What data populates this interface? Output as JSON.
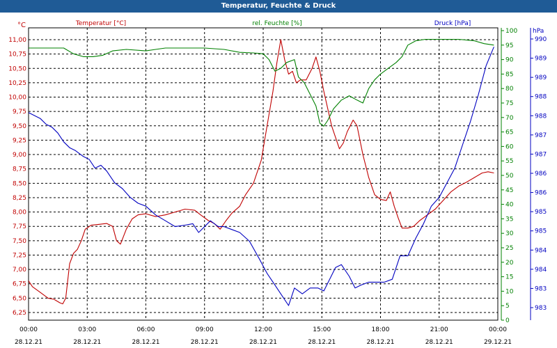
{
  "window": {
    "title": "Temperatur, Feuchte & Druck"
  },
  "colors": {
    "temperature": "#c00000",
    "humidity": "#008000",
    "pressure": "#0000c0",
    "titlebar": "#1f5b96"
  },
  "chart_data": {
    "type": "line",
    "grid": true,
    "x": [
      "00:00",
      "03:00",
      "06:00",
      "09:00",
      "12:00",
      "15:00",
      "18:00",
      "21:00",
      "00:00"
    ],
    "x_dates": [
      "28.12.21",
      "28.12.21",
      "28.12.21",
      "28.12.21",
      "28.12.21",
      "28.12.21",
      "28.12.21",
      "28.12.21",
      "29.12.21"
    ],
    "xlim": [
      0,
      24
    ],
    "axes": {
      "left": {
        "title": "Temperatur [°C]",
        "unit": "°C",
        "ylim": [
          6.25,
          11.0
        ],
        "ticks": [
          "11,00",
          "10,75",
          "10,50",
          "10,25",
          "10,00",
          "9,75",
          "9,50",
          "9,25",
          "9,00",
          "8,75",
          "8,50",
          "8,25",
          "8,00",
          "7,75",
          "7,50",
          "7,25",
          "7,00",
          "6,75",
          "6,50",
          "6,25"
        ]
      },
      "middle": {
        "title": "rel. Feuchte [%]",
        "unit": "%",
        "ylim": [
          0,
          100
        ],
        "ticks": [
          "100",
          "95",
          "90",
          "85",
          "80",
          "75",
          "70",
          "65",
          "60",
          "55",
          "50",
          "45",
          "40",
          "35",
          "30",
          "25",
          "20",
          "15",
          "10",
          "5",
          "0"
        ]
      },
      "right": {
        "title": "Druck [hPa]",
        "unit": "hPa",
        "ticks": [
          "990",
          "989",
          "989",
          "988",
          "988",
          "987",
          "987",
          "986",
          "986",
          "985",
          "985",
          "984",
          "984",
          "983",
          "983"
        ]
      }
    },
    "series": [
      {
        "name": "Temperatur [°C]",
        "axis": "left",
        "points": [
          [
            0,
            6.8
          ],
          [
            0.2,
            6.7
          ],
          [
            0.6,
            6.6
          ],
          [
            1.0,
            6.5
          ],
          [
            1.3,
            6.48
          ],
          [
            1.6,
            6.42
          ],
          [
            1.75,
            6.4
          ],
          [
            1.9,
            6.5
          ],
          [
            2.1,
            7.1
          ],
          [
            2.3,
            7.28
          ],
          [
            2.5,
            7.35
          ],
          [
            2.7,
            7.5
          ],
          [
            2.9,
            7.7
          ],
          [
            3.2,
            7.77
          ],
          [
            3.5,
            7.78
          ],
          [
            4.0,
            7.8
          ],
          [
            4.3,
            7.75
          ],
          [
            4.5,
            7.5
          ],
          [
            4.7,
            7.44
          ],
          [
            5.0,
            7.7
          ],
          [
            5.3,
            7.88
          ],
          [
            5.6,
            7.95
          ],
          [
            6.0,
            7.97
          ],
          [
            6.5,
            7.92
          ],
          [
            7.0,
            7.95
          ],
          [
            7.5,
            8.0
          ],
          [
            8.0,
            8.05
          ],
          [
            8.5,
            8.03
          ],
          [
            8.8,
            7.95
          ],
          [
            9.2,
            7.85
          ],
          [
            9.5,
            7.8
          ],
          [
            9.8,
            7.7
          ],
          [
            10.1,
            7.85
          ],
          [
            10.4,
            7.98
          ],
          [
            10.8,
            8.1
          ],
          [
            11.1,
            8.3
          ],
          [
            11.5,
            8.5
          ],
          [
            11.9,
            8.9
          ],
          [
            12.2,
            9.5
          ],
          [
            12.5,
            10.1
          ],
          [
            12.7,
            10.6
          ],
          [
            12.9,
            11.0
          ],
          [
            13.1,
            10.65
          ],
          [
            13.3,
            10.4
          ],
          [
            13.5,
            10.45
          ],
          [
            13.7,
            10.25
          ],
          [
            13.9,
            10.3
          ],
          [
            14.2,
            10.3
          ],
          [
            14.5,
            10.5
          ],
          [
            14.7,
            10.7
          ],
          [
            14.9,
            10.45
          ],
          [
            15.1,
            10.1
          ],
          [
            15.3,
            9.8
          ],
          [
            15.5,
            9.5
          ],
          [
            15.7,
            9.3
          ],
          [
            15.9,
            9.1
          ],
          [
            16.1,
            9.2
          ],
          [
            16.3,
            9.4
          ],
          [
            16.6,
            9.6
          ],
          [
            16.8,
            9.5
          ],
          [
            17.1,
            9.0
          ],
          [
            17.4,
            8.6
          ],
          [
            17.7,
            8.3
          ],
          [
            18.0,
            8.22
          ],
          [
            18.3,
            8.2
          ],
          [
            18.5,
            8.35
          ],
          [
            18.7,
            8.1
          ],
          [
            18.9,
            7.9
          ],
          [
            19.1,
            7.72
          ],
          [
            19.4,
            7.72
          ],
          [
            19.7,
            7.75
          ],
          [
            20.0,
            7.85
          ],
          [
            20.4,
            7.95
          ],
          [
            20.8,
            8.05
          ],
          [
            21.2,
            8.2
          ],
          [
            21.6,
            8.35
          ],
          [
            22.0,
            8.45
          ],
          [
            22.4,
            8.52
          ],
          [
            22.8,
            8.6
          ],
          [
            23.2,
            8.68
          ],
          [
            23.5,
            8.7
          ],
          [
            23.8,
            8.68
          ]
        ]
      },
      {
        "name": "rel. Feuchte [%]",
        "axis": "middle",
        "points": [
          [
            0,
            94
          ],
          [
            1.0,
            94
          ],
          [
            1.8,
            94
          ],
          [
            2.3,
            92
          ],
          [
            2.8,
            91
          ],
          [
            3.3,
            91
          ],
          [
            3.8,
            91.5
          ],
          [
            4.3,
            93
          ],
          [
            5.0,
            93.5
          ],
          [
            6.0,
            93
          ],
          [
            6.5,
            93.5
          ],
          [
            7.0,
            94
          ],
          [
            8.0,
            94
          ],
          [
            9.0,
            94
          ],
          [
            10.0,
            93.5
          ],
          [
            10.8,
            92.5
          ],
          [
            11.5,
            92.3
          ],
          [
            12.0,
            92
          ],
          [
            12.3,
            90
          ],
          [
            12.6,
            86
          ],
          [
            12.9,
            87
          ],
          [
            13.2,
            89
          ],
          [
            13.6,
            90
          ],
          [
            13.8,
            84
          ],
          [
            14.1,
            82
          ],
          [
            14.4,
            78
          ],
          [
            14.7,
            74
          ],
          [
            14.9,
            68
          ],
          [
            15.1,
            67
          ],
          [
            15.3,
            69
          ],
          [
            15.6,
            73
          ],
          [
            16.0,
            76
          ],
          [
            16.4,
            77.5
          ],
          [
            16.8,
            76
          ],
          [
            17.1,
            75
          ],
          [
            17.4,
            80
          ],
          [
            17.7,
            83
          ],
          [
            18.0,
            85
          ],
          [
            18.4,
            87
          ],
          [
            18.8,
            89
          ],
          [
            19.1,
            91
          ],
          [
            19.4,
            95
          ],
          [
            19.8,
            96.5
          ],
          [
            20.3,
            97
          ],
          [
            21.0,
            97
          ],
          [
            22.0,
            97
          ],
          [
            22.8,
            96.5
          ],
          [
            23.3,
            95.5
          ],
          [
            23.8,
            95
          ]
        ]
      },
      {
        "name": "Druck [hPa]",
        "axis": "right",
        "points": [
          [
            0,
            71
          ],
          [
            0.3,
            70
          ],
          [
            0.6,
            69
          ],
          [
            0.9,
            67
          ],
          [
            1.2,
            66
          ],
          [
            1.5,
            64
          ],
          [
            1.8,
            61
          ],
          [
            2.1,
            59
          ],
          [
            2.4,
            58
          ],
          [
            2.8,
            56
          ],
          [
            3.1,
            55
          ],
          [
            3.4,
            52
          ],
          [
            3.7,
            53
          ],
          [
            4.0,
            51
          ],
          [
            4.4,
            47
          ],
          [
            4.8,
            45
          ],
          [
            5.2,
            42
          ],
          [
            5.6,
            40
          ],
          [
            6.0,
            39
          ],
          [
            6.5,
            36
          ],
          [
            7.0,
            34
          ],
          [
            7.5,
            32
          ],
          [
            8.0,
            32.5
          ],
          [
            8.4,
            33
          ],
          [
            8.7,
            30
          ],
          [
            9.0,
            32
          ],
          [
            9.3,
            34
          ],
          [
            9.7,
            32
          ],
          [
            10.0,
            32
          ],
          [
            10.4,
            31
          ],
          [
            10.8,
            30
          ],
          [
            11.3,
            27
          ],
          [
            11.8,
            21
          ],
          [
            12.2,
            16
          ],
          [
            12.6,
            12
          ],
          [
            13.0,
            8
          ],
          [
            13.3,
            5
          ],
          [
            13.6,
            11
          ],
          [
            14.0,
            9
          ],
          [
            14.4,
            11
          ],
          [
            14.8,
            11
          ],
          [
            15.1,
            10
          ],
          [
            15.4,
            14
          ],
          [
            15.7,
            18
          ],
          [
            16.0,
            19
          ],
          [
            16.4,
            15
          ],
          [
            16.7,
            11
          ],
          [
            17.0,
            12
          ],
          [
            17.4,
            13
          ],
          [
            17.8,
            13
          ],
          [
            18.2,
            13
          ],
          [
            18.6,
            14
          ],
          [
            19.0,
            22
          ],
          [
            19.4,
            22
          ],
          [
            19.8,
            28
          ],
          [
            20.2,
            33
          ],
          [
            20.6,
            39
          ],
          [
            21.0,
            42
          ],
          [
            21.4,
            47
          ],
          [
            21.8,
            52
          ],
          [
            22.2,
            60
          ],
          [
            22.6,
            68
          ],
          [
            23.0,
            77
          ],
          [
            23.4,
            87
          ],
          [
            23.8,
            93.5
          ]
        ]
      }
    ]
  }
}
